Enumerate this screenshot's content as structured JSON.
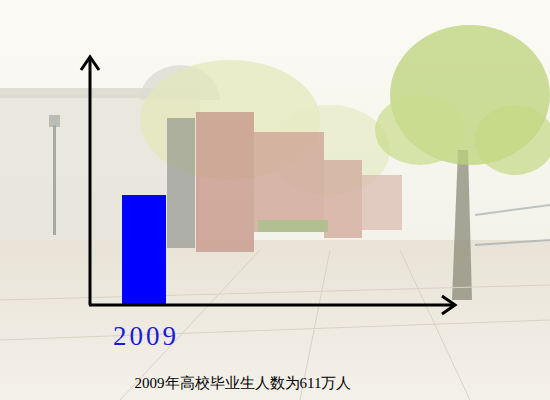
{
  "chart_data": {
    "type": "bar",
    "title": "2009年高校毕业生人数为611万人",
    "categories": [
      "2009"
    ],
    "values": [
      611
    ],
    "color": "#0000ff",
    "ylim": [
      0,
      1350
    ],
    "yticks": [],
    "tick_labels": "x"
  }
}
